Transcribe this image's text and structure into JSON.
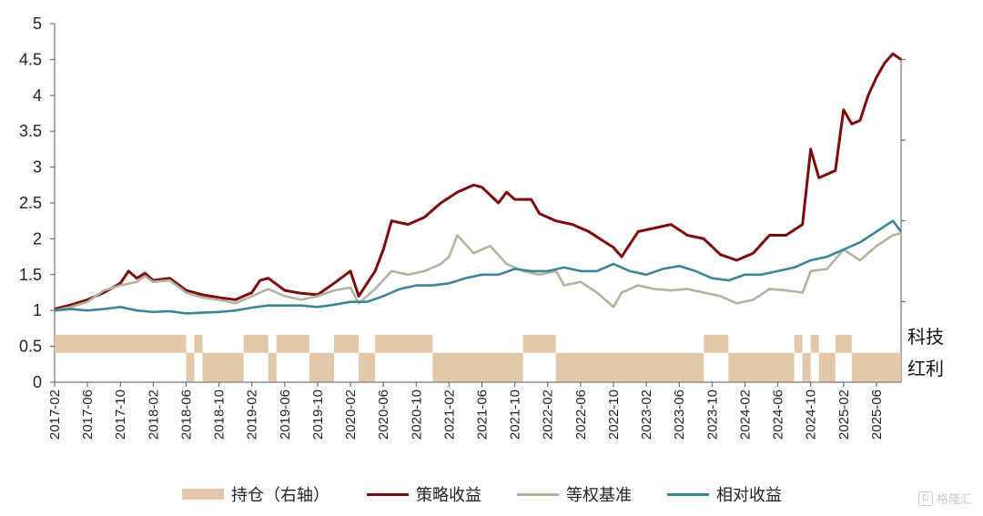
{
  "chart_data": {
    "type": "line",
    "title": "",
    "xlabel": "",
    "ylabel": "",
    "ylim": [
      0,
      5
    ],
    "y_ticks": [
      "0",
      "0.5",
      "1",
      "1.5",
      "2",
      "2.5",
      "3",
      "3.5",
      "4",
      "4.5",
      "5"
    ],
    "x_ticks": [
      "2017-02",
      "2017-06",
      "2017-10",
      "2018-02",
      "2018-06",
      "2018-10",
      "2019-02",
      "2019-06",
      "2019-10",
      "2020-02",
      "2020-06",
      "2020-10",
      "2021-02",
      "2021-06",
      "2021-10",
      "2022-02",
      "2022-06",
      "2022-10",
      "2023-02",
      "2023-06",
      "2023-10",
      "2024-02",
      "2024-06",
      "2024-10",
      "2025-02",
      "2025-06"
    ],
    "x_range": [
      "2017-02",
      "2025-09"
    ],
    "grid": false,
    "legend_position": "bottom",
    "right_axis_labels": {
      "tech": "科技",
      "dividend": "红利"
    },
    "series": [
      {
        "name": "策略收益",
        "color": "#7b0c0c",
        "points": [
          [
            "2017-02",
            1.02
          ],
          [
            "2017-04",
            1.08
          ],
          [
            "2017-06",
            1.15
          ],
          [
            "2017-08",
            1.25
          ],
          [
            "2017-10",
            1.38
          ],
          [
            "2017-11",
            1.55
          ],
          [
            "2017-12",
            1.45
          ],
          [
            "2018-01",
            1.52
          ],
          [
            "2018-02",
            1.42
          ],
          [
            "2018-04",
            1.45
          ],
          [
            "2018-06",
            1.28
          ],
          [
            "2018-08",
            1.22
          ],
          [
            "2018-10",
            1.18
          ],
          [
            "2018-12",
            1.15
          ],
          [
            "2019-02",
            1.25
          ],
          [
            "2019-03",
            1.42
          ],
          [
            "2019-04",
            1.45
          ],
          [
            "2019-06",
            1.28
          ],
          [
            "2019-08",
            1.24
          ],
          [
            "2019-10",
            1.22
          ],
          [
            "2019-12",
            1.38
          ],
          [
            "2020-02",
            1.55
          ],
          [
            "2020-03",
            1.2
          ],
          [
            "2020-05",
            1.55
          ],
          [
            "2020-06",
            1.85
          ],
          [
            "2020-07",
            2.25
          ],
          [
            "2020-09",
            2.2
          ],
          [
            "2020-11",
            2.3
          ],
          [
            "2021-01",
            2.5
          ],
          [
            "2021-03",
            2.65
          ],
          [
            "2021-05",
            2.75
          ],
          [
            "2021-06",
            2.72
          ],
          [
            "2021-08",
            2.5
          ],
          [
            "2021-09",
            2.65
          ],
          [
            "2021-10",
            2.55
          ],
          [
            "2021-12",
            2.55
          ],
          [
            "2022-01",
            2.35
          ],
          [
            "2022-03",
            2.25
          ],
          [
            "2022-05",
            2.2
          ],
          [
            "2022-07",
            2.1
          ],
          [
            "2022-09",
            1.95
          ],
          [
            "2022-10",
            1.88
          ],
          [
            "2022-11",
            1.75
          ],
          [
            "2023-01",
            2.1
          ],
          [
            "2023-03",
            2.15
          ],
          [
            "2023-05",
            2.2
          ],
          [
            "2023-07",
            2.05
          ],
          [
            "2023-09",
            2.0
          ],
          [
            "2023-11",
            1.78
          ],
          [
            "2024-01",
            1.7
          ],
          [
            "2024-03",
            1.8
          ],
          [
            "2024-05",
            2.05
          ],
          [
            "2024-07",
            2.05
          ],
          [
            "2024-09",
            2.2
          ],
          [
            "2024-10",
            3.25
          ],
          [
            "2024-11",
            2.85
          ],
          [
            "2025-01",
            2.95
          ],
          [
            "2025-02",
            3.8
          ],
          [
            "2025-03",
            3.6
          ],
          [
            "2025-04",
            3.65
          ],
          [
            "2025-05",
            4.0
          ],
          [
            "2025-06",
            4.25
          ],
          [
            "2025-07",
            4.45
          ],
          [
            "2025-08",
            4.58
          ],
          [
            "2025-09",
            4.5
          ]
        ]
      },
      {
        "name": "等权基准",
        "color": "#b3b39f",
        "points": [
          [
            "2017-02",
            1.0
          ],
          [
            "2017-04",
            1.05
          ],
          [
            "2017-06",
            1.12
          ],
          [
            "2017-08",
            1.28
          ],
          [
            "2017-10",
            1.35
          ],
          [
            "2017-12",
            1.4
          ],
          [
            "2018-01",
            1.48
          ],
          [
            "2018-02",
            1.4
          ],
          [
            "2018-04",
            1.42
          ],
          [
            "2018-06",
            1.25
          ],
          [
            "2018-08",
            1.18
          ],
          [
            "2018-10",
            1.15
          ],
          [
            "2018-12",
            1.1
          ],
          [
            "2019-02",
            1.2
          ],
          [
            "2019-04",
            1.3
          ],
          [
            "2019-06",
            1.2
          ],
          [
            "2019-08",
            1.15
          ],
          [
            "2019-10",
            1.2
          ],
          [
            "2019-12",
            1.28
          ],
          [
            "2020-02",
            1.32
          ],
          [
            "2020-03",
            1.1
          ],
          [
            "2020-05",
            1.3
          ],
          [
            "2020-07",
            1.55
          ],
          [
            "2020-09",
            1.5
          ],
          [
            "2020-11",
            1.55
          ],
          [
            "2021-01",
            1.65
          ],
          [
            "2021-02",
            1.75
          ],
          [
            "2021-03",
            2.05
          ],
          [
            "2021-05",
            1.8
          ],
          [
            "2021-07",
            1.9
          ],
          [
            "2021-09",
            1.65
          ],
          [
            "2021-11",
            1.55
          ],
          [
            "2022-01",
            1.5
          ],
          [
            "2022-03",
            1.55
          ],
          [
            "2022-04",
            1.35
          ],
          [
            "2022-06",
            1.4
          ],
          [
            "2022-08",
            1.25
          ],
          [
            "2022-10",
            1.05
          ],
          [
            "2022-11",
            1.25
          ],
          [
            "2023-01",
            1.35
          ],
          [
            "2023-03",
            1.3
          ],
          [
            "2023-05",
            1.28
          ],
          [
            "2023-07",
            1.3
          ],
          [
            "2023-09",
            1.25
          ],
          [
            "2023-11",
            1.2
          ],
          [
            "2024-01",
            1.1
          ],
          [
            "2024-03",
            1.15
          ],
          [
            "2024-05",
            1.3
          ],
          [
            "2024-07",
            1.28
          ],
          [
            "2024-09",
            1.25
          ],
          [
            "2024-10",
            1.55
          ],
          [
            "2024-12",
            1.58
          ],
          [
            "2025-02",
            1.85
          ],
          [
            "2025-04",
            1.7
          ],
          [
            "2025-06",
            1.9
          ],
          [
            "2025-08",
            2.05
          ],
          [
            "2025-09",
            2.08
          ]
        ]
      },
      {
        "name": "相对收益",
        "color": "#3c8597",
        "points": [
          [
            "2017-02",
            1.0
          ],
          [
            "2017-04",
            1.02
          ],
          [
            "2017-06",
            1.0
          ],
          [
            "2017-08",
            1.02
          ],
          [
            "2017-10",
            1.05
          ],
          [
            "2017-12",
            1.0
          ],
          [
            "2018-02",
            0.98
          ],
          [
            "2018-04",
            0.99
          ],
          [
            "2018-06",
            0.96
          ],
          [
            "2018-08",
            0.97
          ],
          [
            "2018-10",
            0.98
          ],
          [
            "2018-12",
            1.0
          ],
          [
            "2019-02",
            1.04
          ],
          [
            "2019-04",
            1.07
          ],
          [
            "2019-06",
            1.07
          ],
          [
            "2019-08",
            1.07
          ],
          [
            "2019-10",
            1.05
          ],
          [
            "2019-12",
            1.08
          ],
          [
            "2020-02",
            1.12
          ],
          [
            "2020-04",
            1.12
          ],
          [
            "2020-06",
            1.2
          ],
          [
            "2020-08",
            1.3
          ],
          [
            "2020-10",
            1.35
          ],
          [
            "2020-12",
            1.35
          ],
          [
            "2021-02",
            1.38
          ],
          [
            "2021-04",
            1.45
          ],
          [
            "2021-06",
            1.5
          ],
          [
            "2021-08",
            1.5
          ],
          [
            "2021-10",
            1.58
          ],
          [
            "2021-12",
            1.55
          ],
          [
            "2022-02",
            1.55
          ],
          [
            "2022-04",
            1.6
          ],
          [
            "2022-06",
            1.55
          ],
          [
            "2022-08",
            1.55
          ],
          [
            "2022-10",
            1.65
          ],
          [
            "2022-12",
            1.55
          ],
          [
            "2023-02",
            1.5
          ],
          [
            "2023-04",
            1.58
          ],
          [
            "2023-06",
            1.62
          ],
          [
            "2023-08",
            1.55
          ],
          [
            "2023-10",
            1.45
          ],
          [
            "2023-12",
            1.42
          ],
          [
            "2024-02",
            1.5
          ],
          [
            "2024-04",
            1.5
          ],
          [
            "2024-06",
            1.55
          ],
          [
            "2024-08",
            1.6
          ],
          [
            "2024-10",
            1.7
          ],
          [
            "2024-12",
            1.75
          ],
          [
            "2025-02",
            1.85
          ],
          [
            "2025-04",
            1.95
          ],
          [
            "2025-06",
            2.1
          ],
          [
            "2025-08",
            2.25
          ],
          [
            "2025-09",
            2.1
          ]
        ]
      }
    ],
    "position_series": {
      "name": "持仓（右轴）",
      "color": "#e3c7a9",
      "periods": [
        [
          "2017-02",
          "2018-06",
          "科技"
        ],
        [
          "2018-06",
          "2018-07",
          "红利"
        ],
        [
          "2018-07",
          "2018-08",
          "科技"
        ],
        [
          "2018-08",
          "2019-01",
          "红利"
        ],
        [
          "2019-01",
          "2019-04",
          "科技"
        ],
        [
          "2019-04",
          "2019-05",
          "红利"
        ],
        [
          "2019-05",
          "2019-09",
          "科技"
        ],
        [
          "2019-09",
          "2019-12",
          "红利"
        ],
        [
          "2019-12",
          "2020-03",
          "科技"
        ],
        [
          "2020-03",
          "2020-05",
          "红利"
        ],
        [
          "2020-05",
          "2020-12",
          "科技"
        ],
        [
          "2020-12",
          "2021-11",
          "红利"
        ],
        [
          "2021-11",
          "2022-03",
          "科技"
        ],
        [
          "2022-03",
          "2023-09",
          "红利"
        ],
        [
          "2023-09",
          "2023-12",
          "科技"
        ],
        [
          "2023-12",
          "2024-08",
          "红利"
        ],
        [
          "2024-08",
          "2024-09",
          "科技"
        ],
        [
          "2024-09",
          "2024-10",
          "红利"
        ],
        [
          "2024-10",
          "2024-11",
          "科技"
        ],
        [
          "2024-11",
          "2025-01",
          "红利"
        ],
        [
          "2025-01",
          "2025-03",
          "科技"
        ],
        [
          "2025-03",
          "2025-10",
          "红利"
        ]
      ]
    }
  },
  "legend": {
    "position": "持仓（右轴）",
    "strategy": "策略收益",
    "benchmark": "等权基准",
    "relative": "相对收益"
  },
  "watermark": {
    "icon_glyph": "G",
    "text": "格隆汇"
  }
}
